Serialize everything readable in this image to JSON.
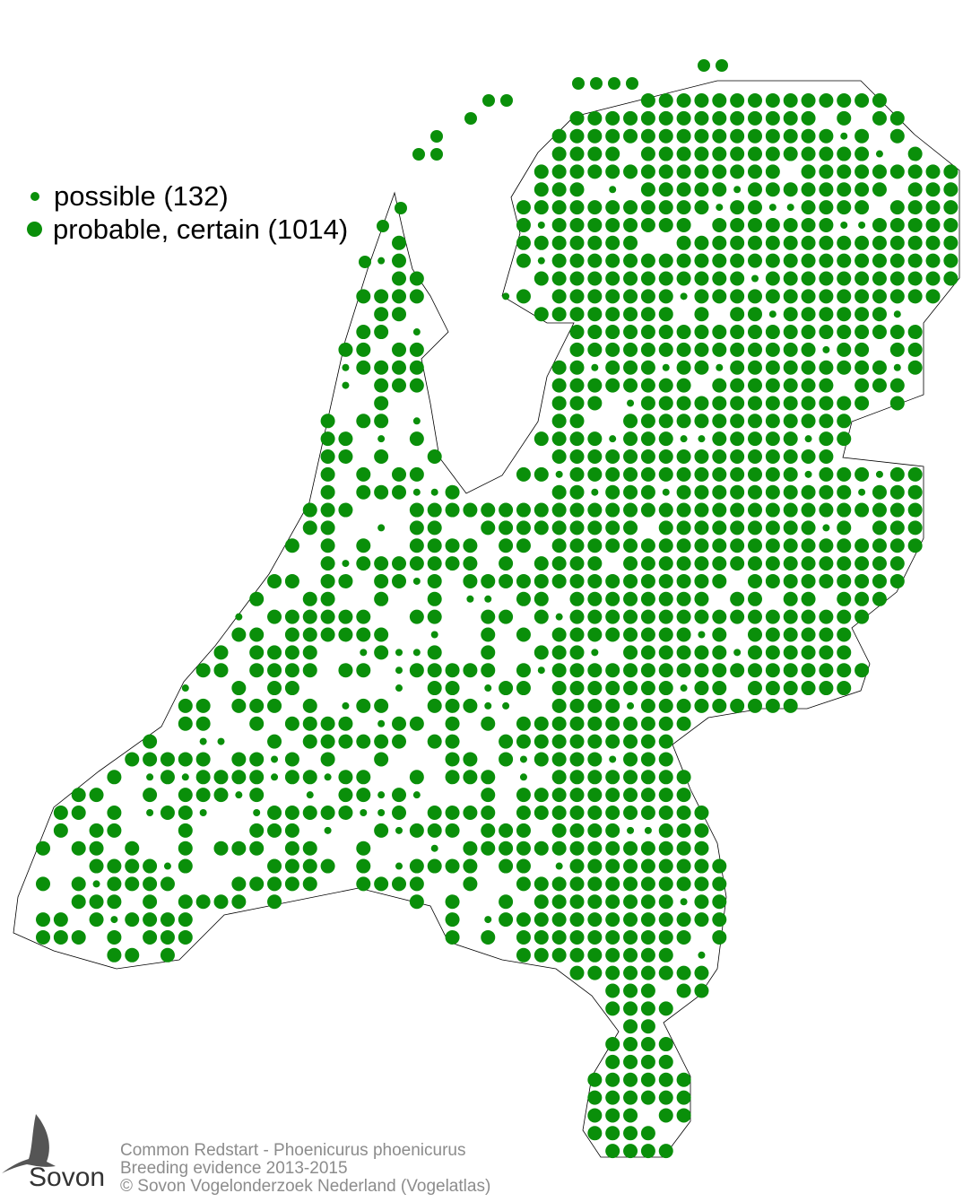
{
  "legend": {
    "items": [
      {
        "label": "possible (132)",
        "category": "possible",
        "count": 132,
        "symbol": "small-dot"
      },
      {
        "label": "probable, certain (1014)",
        "category": "probable, certain",
        "count": 1014,
        "symbol": "large-dot"
      }
    ]
  },
  "caption": {
    "line1": "Common Redstart - Phoenicurus phoenicurus",
    "line2": "Breeding evidence 2013-2015",
    "line3": "© Sovon Vogelonderzoek Nederland (Vogelatlas)"
  },
  "logo": {
    "text": "Sovon"
  },
  "colors": {
    "dot": "#0a8f0a",
    "outline": "#000000",
    "caption": "#8c8c8c"
  }
}
